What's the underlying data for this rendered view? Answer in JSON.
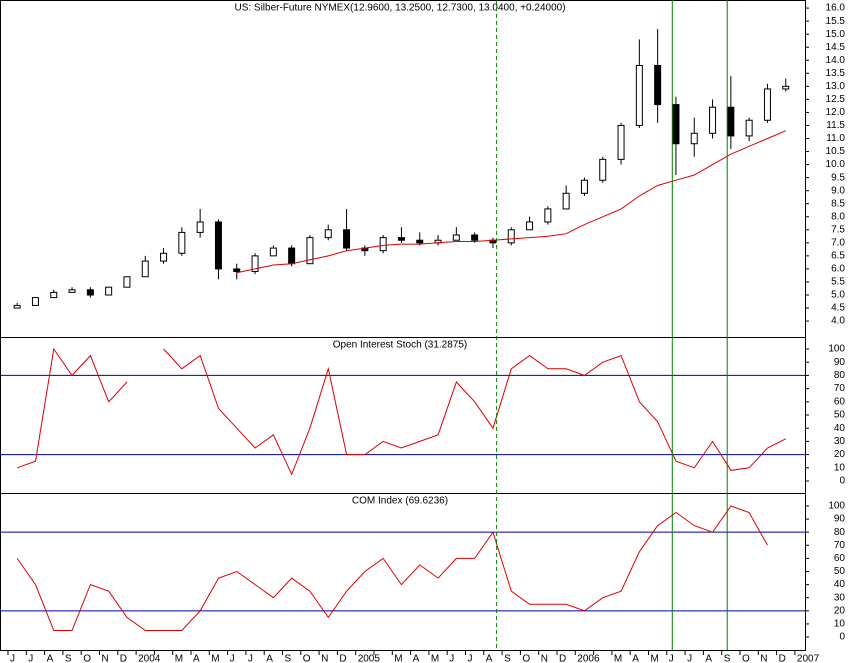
{
  "chart_data": [
    {
      "type": "candlestick",
      "title": "US: Silber-Future  NYMEX(12.9600, 13.2500, 12.7300, 13.0400, +0.24000)",
      "open": [
        4.5,
        4.6,
        4.9,
        5.1,
        5.2,
        5.0,
        5.3,
        5.7,
        6.3,
        6.6,
        7.4,
        7.8,
        6.0,
        5.9,
        6.5,
        6.8,
        6.2,
        7.2,
        7.5,
        6.8,
        6.7,
        7.2,
        7.1,
        7.0,
        7.1,
        7.3,
        7.1,
        7.0,
        7.5,
        7.8,
        8.3,
        8.9,
        9.4,
        10.2,
        11.5,
        13.8,
        12.3,
        10.8,
        11.2,
        12.2,
        11.1,
        11.7,
        12.9,
        null
      ],
      "high": [
        4.7,
        4.9,
        5.2,
        5.3,
        5.3,
        5.3,
        5.7,
        6.5,
        6.8,
        7.6,
        8.3,
        7.9,
        6.2,
        6.6,
        6.9,
        6.9,
        7.3,
        7.7,
        8.3,
        6.9,
        7.3,
        7.6,
        7.4,
        7.3,
        7.6,
        7.4,
        7.2,
        7.6,
        8.0,
        8.4,
        9.2,
        9.5,
        10.3,
        11.6,
        14.8,
        15.2,
        12.6,
        11.8,
        12.5,
        13.4,
        11.8,
        13.1,
        13.3,
        null
      ],
      "low": [
        4.5,
        4.6,
        4.9,
        5.1,
        4.9,
        5.0,
        5.3,
        5.7,
        6.2,
        6.5,
        7.2,
        5.6,
        5.6,
        5.8,
        6.5,
        6.1,
        6.2,
        7.1,
        6.7,
        6.5,
        6.6,
        7.0,
        6.9,
        6.9,
        7.1,
        7.0,
        6.8,
        6.9,
        7.5,
        7.7,
        8.3,
        8.8,
        9.3,
        10.0,
        11.4,
        11.6,
        9.6,
        10.3,
        11.0,
        10.6,
        10.9,
        11.6,
        12.8,
        null
      ],
      "close": [
        4.6,
        4.9,
        5.1,
        5.2,
        5.0,
        5.3,
        5.7,
        6.3,
        6.6,
        7.4,
        7.8,
        6.0,
        5.9,
        6.5,
        6.8,
        6.2,
        7.2,
        7.5,
        6.8,
        6.7,
        7.2,
        7.1,
        7.0,
        7.1,
        7.3,
        7.1,
        7.0,
        7.5,
        7.8,
        8.3,
        8.9,
        9.4,
        10.2,
        11.5,
        13.8,
        12.3,
        10.8,
        11.2,
        12.2,
        11.1,
        11.7,
        12.9,
        13.0,
        null
      ],
      "up_color": "#ffffff",
      "down_color": "#000000",
      "overlay": {
        "color": "#dd0000",
        "values": [
          null,
          null,
          null,
          null,
          null,
          null,
          null,
          null,
          null,
          null,
          null,
          null,
          5.85,
          6.0,
          6.15,
          6.2,
          6.35,
          6.5,
          6.7,
          6.8,
          6.9,
          6.95,
          6.95,
          7.0,
          7.05,
          7.05,
          7.1,
          7.15,
          7.2,
          7.25,
          7.35,
          7.7,
          8.0,
          8.3,
          8.8,
          9.2,
          9.4,
          9.6,
          10.0,
          10.4,
          10.7,
          11.0,
          11.3,
          null
        ]
      },
      "ylim": [
        3.39,
        16.31
      ],
      "yticks": [
        {
          "value": 4,
          "label": "4.0"
        },
        4.5,
        {
          "value": 5,
          "label": "5.0"
        },
        5.5,
        {
          "value": 6,
          "label": "6.0"
        },
        6.5,
        {
          "value": 7,
          "label": "7.0"
        },
        7.5,
        {
          "value": 8,
          "label": "8.0"
        },
        8.5,
        {
          "value": 9,
          "label": "9.0"
        },
        9.5,
        {
          "value": 10,
          "label": "10.0"
        },
        10.5,
        {
          "value": 11,
          "label": "11.0"
        },
        11.5,
        {
          "value": 12,
          "label": "12.0"
        },
        12.5,
        {
          "value": 13,
          "label": "13.0"
        },
        13.5,
        {
          "value": 14,
          "label": "14.0"
        },
        14.5,
        {
          "value": 15,
          "label": "15.0"
        },
        15.5,
        {
          "value": 16,
          "label": "16.0"
        }
      ]
    },
    {
      "type": "line",
      "title": "Open Interest Stoch (31.2875)",
      "color": "#dd0000",
      "values": [
        10,
        15,
        100,
        80,
        95,
        60,
        75,
        null,
        100,
        85,
        95,
        55,
        40,
        25,
        35,
        5,
        40,
        85,
        20,
        20,
        30,
        25,
        30,
        35,
        75,
        60,
        40,
        85,
        95,
        85,
        85,
        80,
        90,
        95,
        60,
        45,
        15,
        10,
        30,
        8,
        10,
        25,
        32,
        null
      ],
      "levels": [
        20,
        80
      ],
      "level_color": "#0000aa",
      "ylim": [
        -9.1,
        109.1
      ],
      "yticks": [
        0,
        10,
        20,
        30,
        40,
        50,
        60,
        70,
        80,
        90,
        100
      ]
    },
    {
      "type": "line",
      "title": "COM Index (69.6236)",
      "color": "#dd0000",
      "values": [
        60,
        40,
        5,
        5,
        40,
        35,
        15,
        5,
        5,
        5,
        20,
        45,
        50,
        40,
        30,
        45,
        35,
        15,
        35,
        50,
        60,
        40,
        55,
        45,
        60,
        60,
        80,
        35,
        25,
        25,
        25,
        20,
        30,
        35,
        65,
        85,
        95,
        85,
        80,
        100,
        95,
        70,
        null,
        null
      ],
      "levels": [
        20,
        80
      ],
      "level_color": "#0000aa",
      "ylim": [
        -9.9,
        109.9
      ],
      "yticks": [
        0,
        10,
        20,
        30,
        40,
        50,
        60,
        70,
        80,
        90,
        100
      ],
      "categories": [
        "J",
        "J",
        "A",
        "S",
        "O",
        "N",
        "D",
        "2004",
        null,
        "M",
        "A",
        "M",
        "J",
        "J",
        "A",
        "S",
        "O",
        "N",
        "D",
        "2005",
        null,
        "M",
        "A",
        "M",
        "J",
        "J",
        "A",
        "S",
        "O",
        "N",
        "D",
        "2006",
        null,
        "M",
        "A",
        "M",
        "J",
        "J",
        "A",
        "S",
        "O",
        "N",
        "D",
        "2007"
      ],
      "markers": [
        {
          "x": 26.7,
          "style": "dashed",
          "color": "#008000"
        },
        {
          "x": 36.3,
          "style": "solid",
          "color": "#008000"
        },
        {
          "x": 39.3,
          "style": "solid",
          "color": "#008000"
        }
      ]
    }
  ]
}
